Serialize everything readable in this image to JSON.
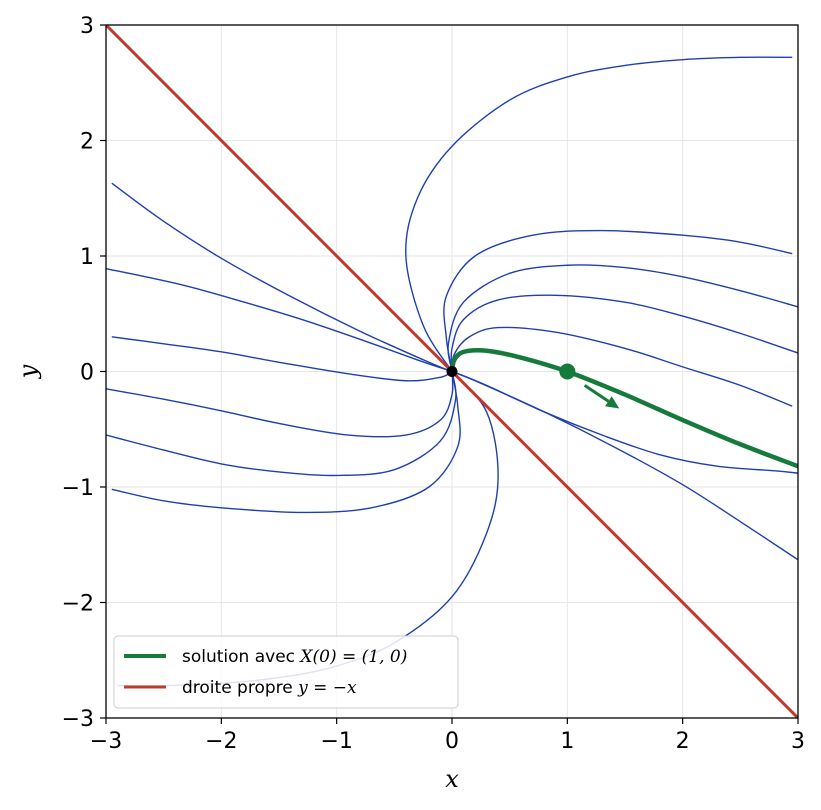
{
  "chart_data": {
    "type": "line",
    "title": "",
    "xlabel": "x",
    "ylabel": "y",
    "xlim": [
      -3,
      3
    ],
    "ylim": [
      -3,
      3
    ],
    "grid": true,
    "legend_placement": "lower-left",
    "x_ticks": [
      -3,
      -2,
      -1,
      0,
      1,
      2,
      3
    ],
    "y_ticks": [
      -3,
      -2,
      -1,
      0,
      1,
      2,
      3
    ],
    "x_tick_labels": [
      "−3",
      "−2",
      "−1",
      "0",
      "1",
      "2",
      "3"
    ],
    "y_tick_labels": [
      "−3",
      "−2",
      "−1",
      "0",
      "1",
      "2",
      "3"
    ],
    "colors": {
      "trajectories": "#1f3fb0",
      "solution": "#157a3c",
      "eigenline": "#c0392b",
      "origin": "#000000"
    },
    "trajectories": [
      {
        "name": "",
        "x": [
          0,
          -0.25,
          -0.4,
          -0.3,
          0,
          0.5,
          1.0,
          1.5,
          2.0,
          2.5,
          2.95
        ],
        "y": [
          0,
          0.4,
          1.0,
          1.5,
          1.95,
          2.35,
          2.55,
          2.65,
          2.7,
          2.72,
          2.72
        ]
      },
      {
        "name": "",
        "x": [
          0,
          -0.05,
          -0.05,
          0.2,
          0.7,
          1.3,
          2.0,
          2.5,
          2.95
        ],
        "y": [
          0,
          0.3,
          0.65,
          1.0,
          1.18,
          1.22,
          1.18,
          1.12,
          1.02
        ]
      },
      {
        "name": "",
        "x": [
          0,
          -0.03,
          0.1,
          0.5,
          1.0,
          1.5,
          2.0,
          2.5,
          3.0
        ],
        "y": [
          0,
          0.25,
          0.6,
          0.85,
          0.92,
          0.9,
          0.82,
          0.7,
          0.56
        ]
      },
      {
        "name": "",
        "x": [
          0,
          0.0,
          0.1,
          0.4,
          0.9,
          1.5,
          2.0,
          2.5,
          3.0
        ],
        "y": [
          0,
          0.2,
          0.45,
          0.62,
          0.66,
          0.6,
          0.48,
          0.33,
          0.16
        ]
      },
      {
        "name": "",
        "x": [
          0,
          0.02,
          0.15,
          0.4,
          0.9,
          1.5,
          2.0,
          2.5,
          2.95
        ],
        "y": [
          0,
          0.15,
          0.3,
          0.38,
          0.34,
          0.2,
          0.04,
          -0.12,
          -0.3
        ]
      },
      {
        "name": "",
        "x": [
          0,
          0.3,
          0.8,
          1.3,
          1.8,
          2.3,
          2.8,
          3.0
        ],
        "y": [
          0,
          -0.12,
          -0.35,
          -0.55,
          -0.72,
          -0.82,
          -0.86,
          -0.88
        ]
      },
      {
        "name": "",
        "x": [
          0,
          0.2,
          0.8,
          1.4,
          2.0,
          2.5,
          3.0
        ],
        "y": [
          0,
          -0.08,
          -0.35,
          -0.65,
          -0.98,
          -1.3,
          -1.63
        ]
      },
      {
        "name": "",
        "x": [
          0,
          0.3,
          0.4,
          0.3,
          0.0,
          -0.5,
          -1.0,
          -1.5,
          -2.0,
          -2.5,
          -2.9
        ],
        "y": [
          0,
          -0.35,
          -0.9,
          -1.4,
          -1.95,
          -2.35,
          -2.55,
          -2.65,
          -2.7,
          -2.72,
          -2.72
        ]
      },
      {
        "name": "",
        "x": [
          0,
          0.05,
          0.05,
          -0.2,
          -0.7,
          -1.3,
          -2.0,
          -2.5,
          -2.95
        ],
        "y": [
          0,
          -0.3,
          -0.65,
          -1.0,
          -1.18,
          -1.22,
          -1.18,
          -1.12,
          -1.02
        ]
      },
      {
        "name": "",
        "x": [
          0,
          0.03,
          -0.1,
          -0.5,
          -1.0,
          -1.5,
          -2.0,
          -2.5,
          -3.0
        ],
        "y": [
          0,
          -0.25,
          -0.6,
          -0.85,
          -0.9,
          -0.87,
          -0.8,
          -0.68,
          -0.55
        ]
      },
      {
        "name": "",
        "x": [
          0,
          0.0,
          -0.1,
          -0.4,
          -0.9,
          -1.5,
          -2.0,
          -2.5,
          -3.0
        ],
        "y": [
          0,
          -0.2,
          -0.42,
          -0.55,
          -0.55,
          -0.45,
          -0.34,
          -0.24,
          -0.15
        ]
      },
      {
        "name": "",
        "x": [
          0,
          -0.1,
          -0.4,
          -0.9,
          -1.5,
          -2.0,
          -2.5,
          -2.95
        ],
        "y": [
          0,
          -0.05,
          -0.08,
          -0.02,
          0.08,
          0.17,
          0.24,
          0.3
        ]
      },
      {
        "name": "",
        "x": [
          0,
          -0.3,
          -0.8,
          -1.3,
          -1.8,
          -2.3,
          -2.8,
          -3.0
        ],
        "y": [
          0,
          0.1,
          0.28,
          0.45,
          0.6,
          0.74,
          0.85,
          0.89
        ]
      },
      {
        "name": "",
        "x": [
          0,
          -0.2,
          -0.8,
          -1.4,
          -2.0,
          -2.5,
          -2.95
        ],
        "y": [
          0,
          0.08,
          0.35,
          0.65,
          0.98,
          1.3,
          1.63
        ]
      }
    ],
    "solution": {
      "name": "solution avec X(0) = (1, 0)",
      "legend_label_prefix": "solution avec ",
      "legend_label_math": "X(0) = (1, 0)",
      "x": [
        0,
        0.02,
        0.1,
        0.3,
        0.6,
        1.0,
        1.5,
        2.0,
        2.5,
        3.0
      ],
      "y": [
        0,
        0.1,
        0.17,
        0.18,
        0.12,
        0.0,
        -0.2,
        -0.42,
        -0.63,
        -0.82
      ],
      "initial_point": [
        1,
        0
      ],
      "direction_arrow": {
        "from": [
          1.15,
          -0.12
        ],
        "to": [
          1.45,
          -0.32
        ]
      }
    },
    "eigenline": {
      "name": "droite propre y = −x",
      "legend_label_prefix": "droite propre ",
      "legend_label_math": "y = −x",
      "x": [
        -3,
        3
      ],
      "y": [
        3,
        -3
      ]
    },
    "origin_point": [
      0,
      0
    ]
  }
}
